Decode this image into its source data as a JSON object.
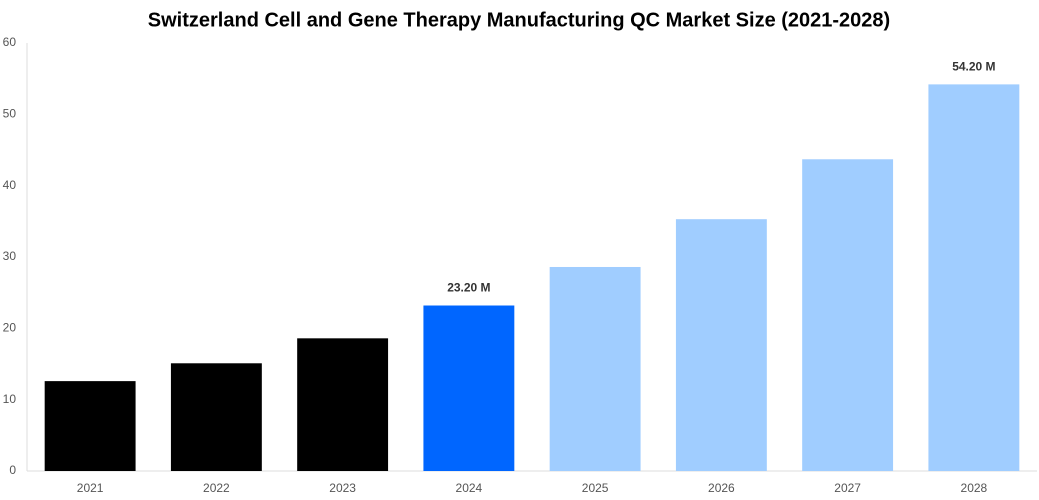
{
  "chart_data": {
    "type": "bar",
    "title": "Switzerland Cell and Gene Therapy Manufacturing QC Market Size (2021-2028)",
    "categories": [
      "2021",
      "2022",
      "2023",
      "2024",
      "2025",
      "2026",
      "2027",
      "2028"
    ],
    "values": [
      12.6,
      15.1,
      18.6,
      23.2,
      28.6,
      35.3,
      43.7,
      54.2
    ],
    "value_labels": [
      null,
      null,
      null,
      "23.20 M",
      null,
      null,
      null,
      "54.20 M"
    ],
    "colors": [
      "#000000",
      "#000000",
      "#000000",
      "#0066ff",
      "#a0cdff",
      "#a0cdff",
      "#a0cdff",
      "#a0cdff"
    ],
    "ylim": [
      0,
      60
    ],
    "yticks": [
      0,
      10,
      20,
      30,
      40,
      50,
      60
    ],
    "grid": false
  }
}
